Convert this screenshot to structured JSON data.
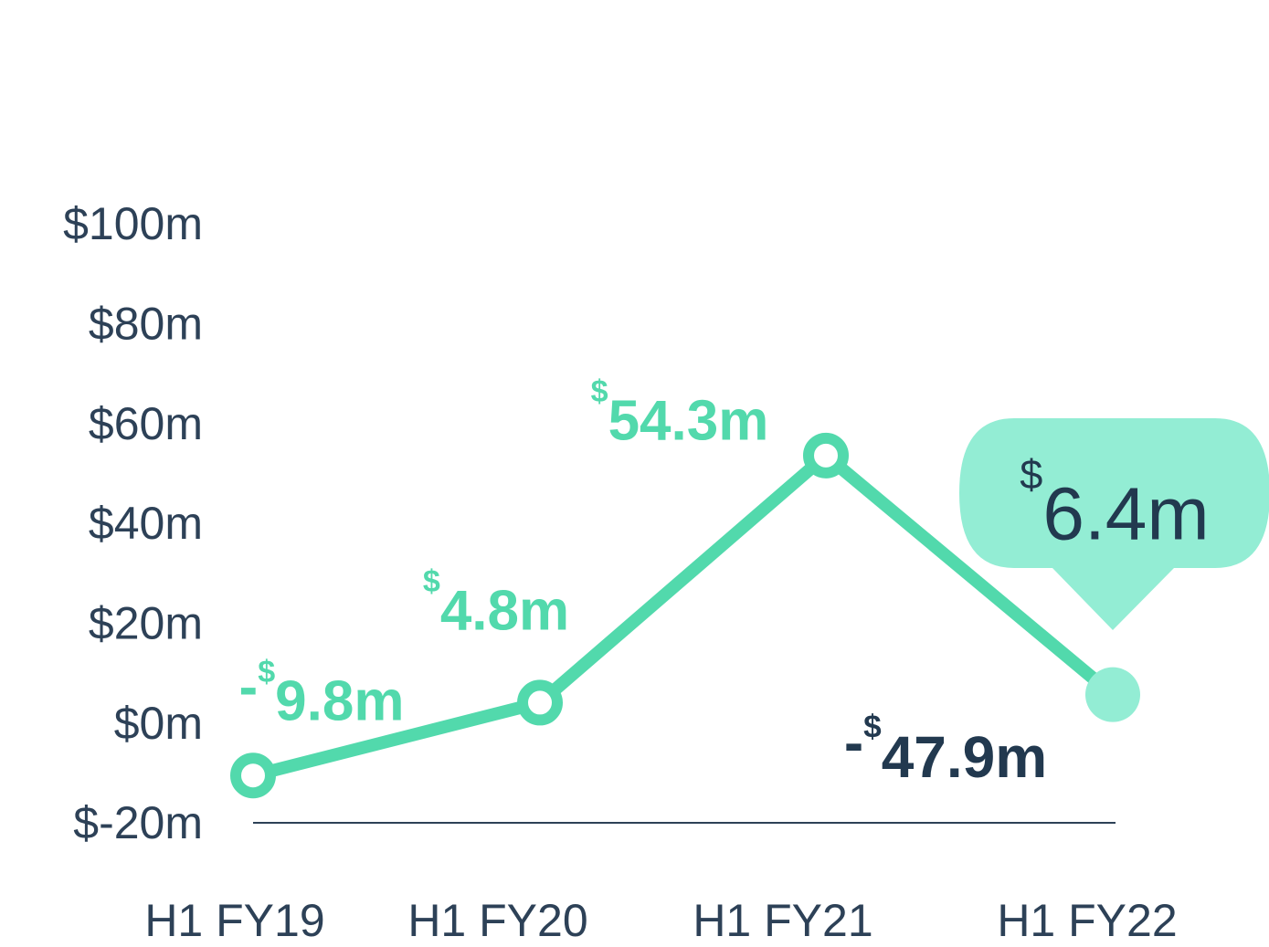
{
  "chart_data": {
    "type": "line",
    "categories": [
      "H1 FY19",
      "H1 FY20",
      "H1 FY21",
      "H1 FY22"
    ],
    "values": [
      -9.8,
      4.8,
      54.3,
      6.4
    ],
    "value_labels": [
      "-$9.8m",
      "$4.8m",
      "$54.3m",
      "$6.4m"
    ],
    "color": "#52d9ac",
    "ylim": [
      -20,
      100
    ],
    "yticks": [
      {
        "value": -20,
        "label": "$-20m"
      },
      {
        "value": 0,
        "label": "$0m"
      },
      {
        "value": 20,
        "label": "$20m"
      },
      {
        "value": 40,
        "label": "$40m"
      },
      {
        "value": 60,
        "label": "$60m"
      },
      {
        "value": 80,
        "label": "$80m"
      },
      {
        "value": 100,
        "label": "$100m"
      }
    ],
    "annotation": "-$47.9m"
  }
}
